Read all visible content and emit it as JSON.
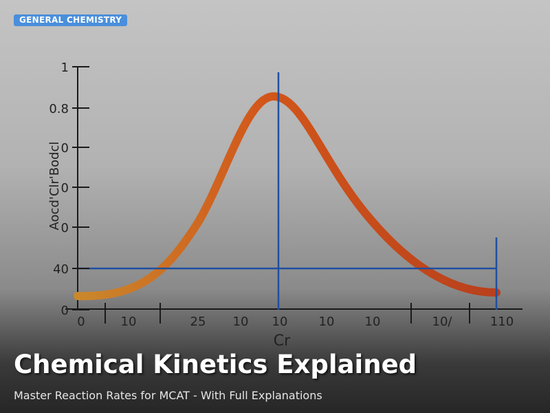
{
  "badge": "GENERAL CHEMISTRY",
  "title": "Chemical Kinetics Explained",
  "subtitle": "Master Reaction Rates for MCAT - With Full Explanations",
  "illustration": {
    "y_axis_label": "Aocd'Clr'Bodcl",
    "x_axis_label": "Cr",
    "y_labels": [
      "1",
      "0.8",
      "0",
      "0",
      "0",
      "40",
      "0"
    ],
    "x_labels": [
      "0",
      "10",
      "25",
      "10",
      "10",
      "10",
      "10",
      "10/",
      "110"
    ]
  }
}
